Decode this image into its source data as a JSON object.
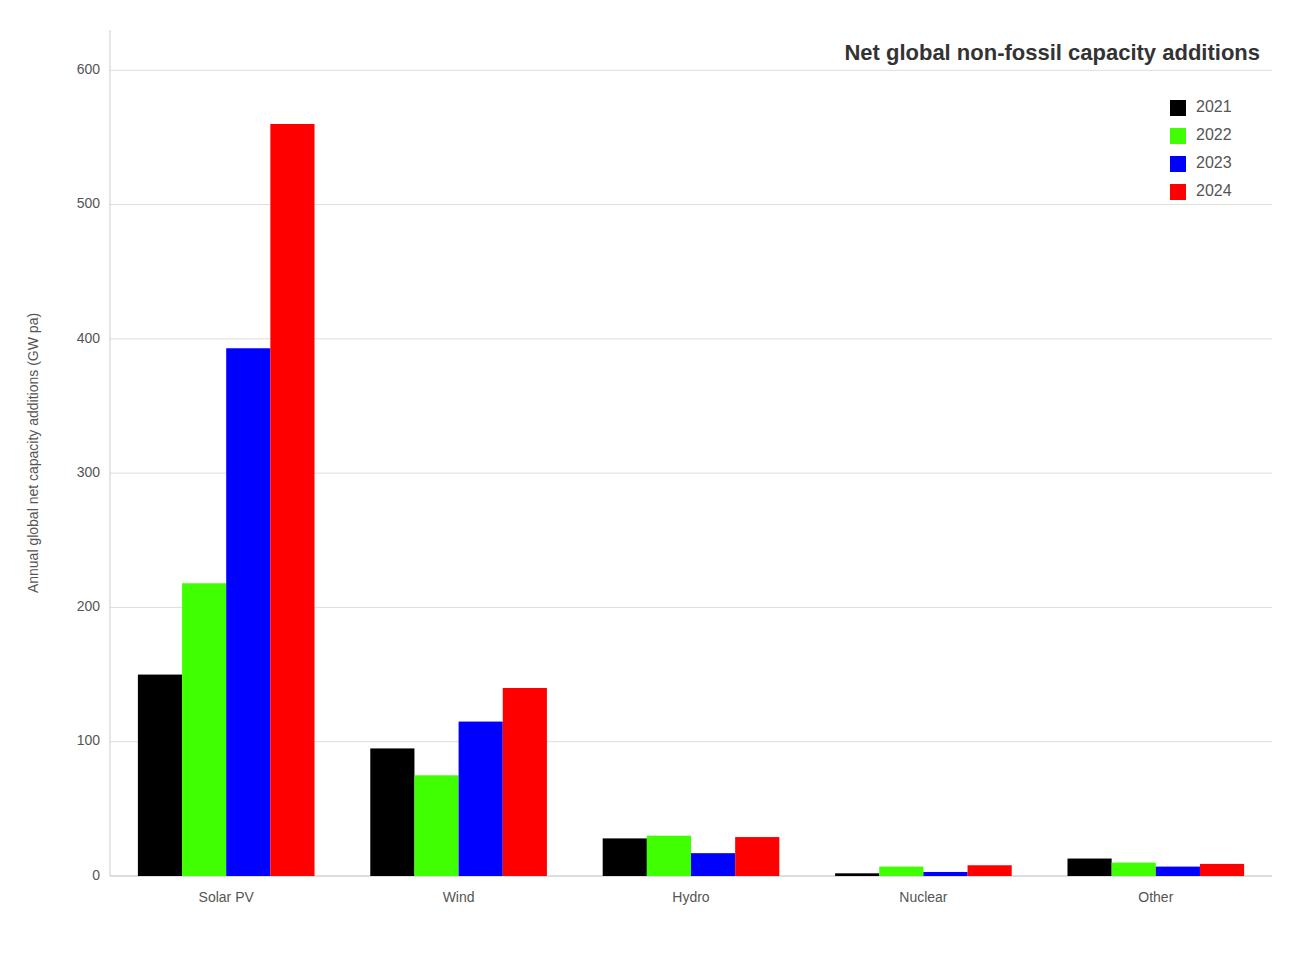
{
  "chart_data": {
    "type": "bar",
    "title": "Net global non-fossil capacity additions",
    "ylabel": "Annual global net capacity additions (GW pa)",
    "categories": [
      "Solar PV",
      "Wind",
      "Hydro",
      "Nuclear",
      "Other"
    ],
    "series": [
      {
        "name": "2021",
        "color": "#000000",
        "values": [
          150,
          95,
          28,
          2,
          13
        ]
      },
      {
        "name": "2022",
        "color": "#3fff00",
        "values": [
          218,
          75,
          30,
          7,
          10
        ]
      },
      {
        "name": "2023",
        "color": "#0000ff",
        "values": [
          393,
          115,
          17,
          3,
          7
        ]
      },
      {
        "name": "2024",
        "color": "#ff0000",
        "values": [
          560,
          140,
          29,
          8,
          9
        ]
      }
    ],
    "ylim": [
      0,
      630
    ],
    "yticks": [
      0,
      100,
      200,
      300,
      400,
      500,
      600
    ],
    "grid": true,
    "legend": "upper right"
  }
}
